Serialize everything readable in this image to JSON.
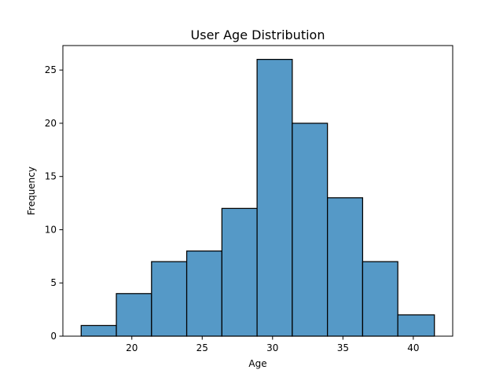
{
  "chart_data": {
    "type": "bar",
    "title": "User Age Distribution",
    "xlabel": "Age",
    "ylabel": "Frequency",
    "bin_edges": [
      16.4,
      18.9,
      21.4,
      23.9,
      26.4,
      28.9,
      31.4,
      33.9,
      36.4,
      38.9,
      41.5
    ],
    "values": [
      1,
      4,
      7,
      8,
      12,
      26,
      20,
      13,
      7,
      2
    ],
    "xlim": [
      15.1,
      42.8
    ],
    "ylim": [
      0,
      27.3
    ],
    "xticks": [
      20,
      25,
      30,
      35,
      40
    ],
    "yticks": [
      0,
      5,
      10,
      15,
      20,
      25
    ],
    "bar_color": "#5599c7",
    "edge_color": "#000000",
    "grid": false,
    "legend": false
  }
}
